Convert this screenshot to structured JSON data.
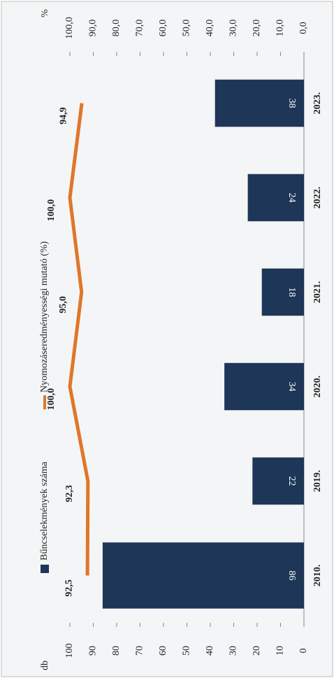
{
  "chart_data": {
    "type": "bar-line",
    "categories": [
      "2010.",
      "2019.",
      "2020.",
      "2021.",
      "2022.",
      "2023."
    ],
    "y_label": "db",
    "y2_label": "%",
    "series": [
      {
        "name": "Bűncselekmények száma",
        "type": "bar",
        "color": "#1e3658",
        "values": [
          86,
          22,
          34,
          18,
          24,
          38
        ]
      },
      {
        "name": "Nyomozáseredményességi mutató (%)",
        "type": "line",
        "axis": "y2",
        "color": "#e0762a",
        "values": [
          92.5,
          92.3,
          100.0,
          95.0,
          100.0,
          94.9
        ],
        "value_labels": [
          "92,5",
          "92,3",
          "100,0",
          "95,0",
          "100,0",
          "94,9"
        ]
      }
    ],
    "ylim": [
      0,
      100
    ],
    "yticks": [
      0,
      10,
      20,
      30,
      40,
      50,
      60,
      70,
      80,
      90,
      100
    ],
    "y2lim": [
      0,
      100
    ],
    "y2ticks": [
      {
        "value": 0,
        "label": "0,0"
      },
      {
        "value": 10,
        "label": "10,0"
      },
      {
        "value": 20,
        "label": "20,0"
      },
      {
        "value": 30,
        "label": "30,0"
      },
      {
        "value": 40,
        "label": "40,0"
      },
      {
        "value": 50,
        "label": "50,0"
      },
      {
        "value": 60,
        "label": "60,0"
      },
      {
        "value": 70,
        "label": "70,0"
      },
      {
        "value": 80,
        "label": "80,0"
      },
      {
        "value": 90,
        "label": "90,0"
      },
      {
        "value": 100,
        "label": "100,0"
      }
    ]
  }
}
